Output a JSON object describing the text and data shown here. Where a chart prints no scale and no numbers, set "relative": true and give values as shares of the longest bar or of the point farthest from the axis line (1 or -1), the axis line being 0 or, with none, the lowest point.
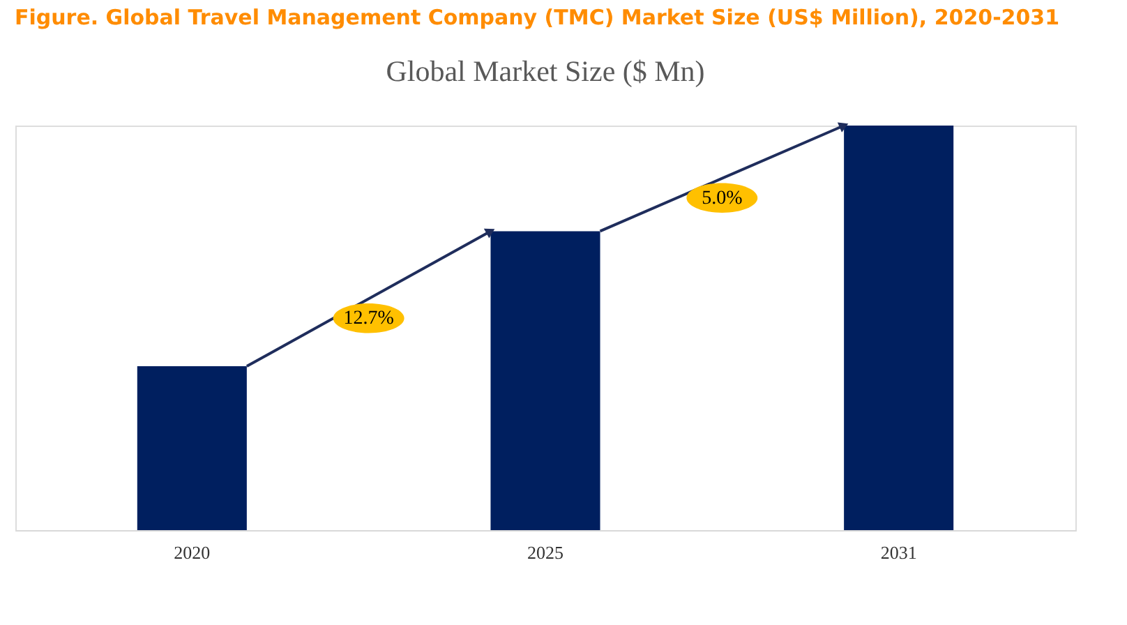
{
  "chart_data": {
    "type": "bar",
    "title": "Figure.   Global Travel Management Company (TMC) Market Size (US$ Million), 2020-2031",
    "subtitle": "Global Market Size ($ Mn)",
    "categories": [
      "2020",
      "2025",
      "2031"
    ],
    "values": [
      0.405,
      0.739,
      1
    ],
    "color": "#001f5f",
    "relative": true,
    "annotations": [
      "12.7%",
      "5.0%"
    ]
  }
}
